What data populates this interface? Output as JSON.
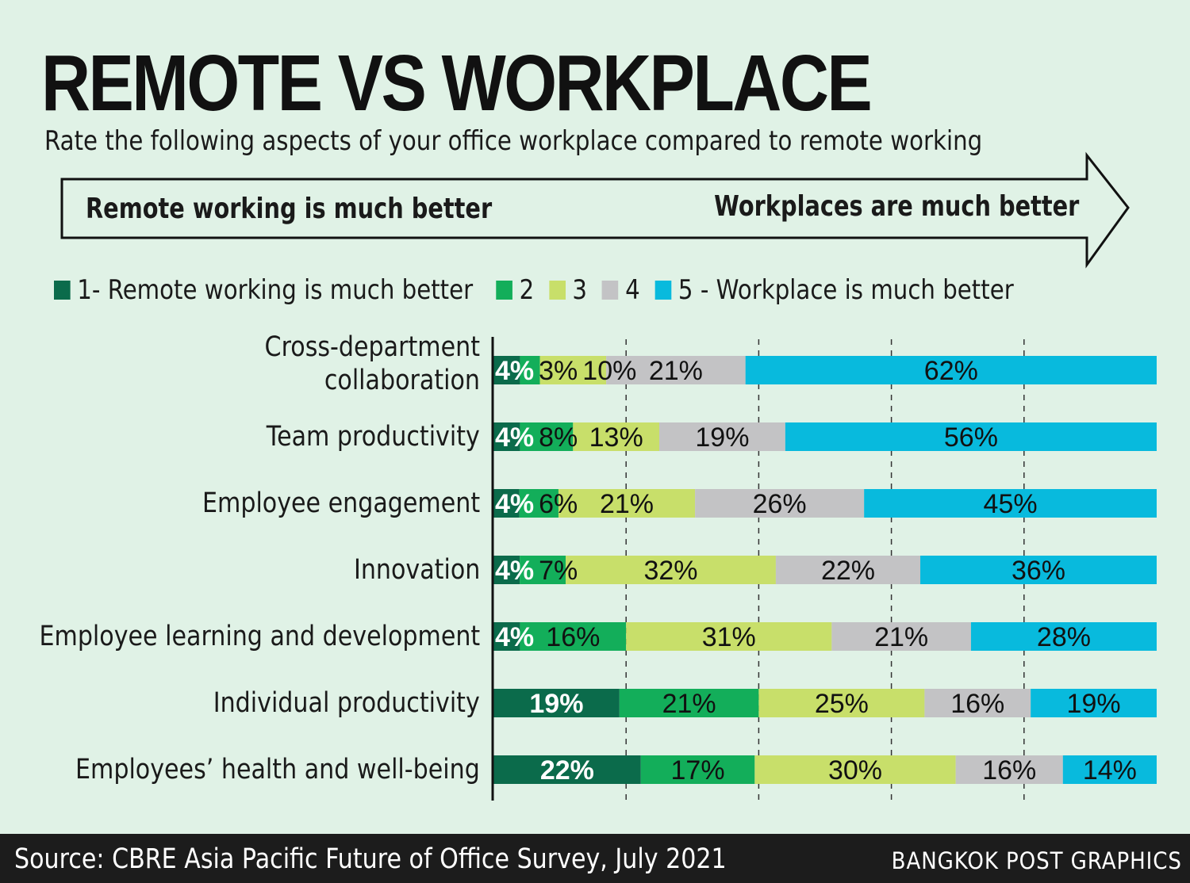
{
  "title": "REMOTE VS WORKPLACE",
  "subtitle": "Rate the following aspects of your office workplace compared to remote working",
  "arrow": {
    "left_label": "Remote working is much better",
    "right_label": "Workplaces are much better"
  },
  "chart_data": {
    "type": "bar",
    "orientation": "horizontal-stacked-100",
    "title": "REMOTE VS WORKPLACE",
    "categories": [
      "Cross-department collaboration",
      "Team productivity",
      "Employee engagement",
      "Innovation",
      "Employee learning and development",
      "Individual productivity",
      "Employees’ health and well-being"
    ],
    "series": [
      {
        "name": "1- Remote working is much better",
        "color": "#0b6b4b",
        "values": [
          4,
          4,
          4,
          4,
          4,
          19,
          22
        ]
      },
      {
        "name": "2",
        "color": "#13ae5a",
        "values": [
          3,
          8,
          6,
          7,
          16,
          21,
          17
        ]
      },
      {
        "name": "3",
        "color": "#c8df6a",
        "values": [
          10,
          13,
          21,
          32,
          31,
          25,
          30
        ]
      },
      {
        "name": "4",
        "color": "#c3c3c5",
        "values": [
          21,
          19,
          26,
          22,
          21,
          16,
          16
        ]
      },
      {
        "name": "5 - Workplace is much better",
        "color": "#08badd",
        "values": [
          62,
          56,
          45,
          36,
          28,
          19,
          14
        ]
      }
    ],
    "unit": "%",
    "xlim": [
      0,
      100
    ],
    "grid": "dashed vertical",
    "legend": "top"
  },
  "footer": {
    "source": "Source: CBRE Asia Pacific Future of Office Survey, July 2021",
    "credit": "BANGKOK POST GRAPHICS"
  }
}
